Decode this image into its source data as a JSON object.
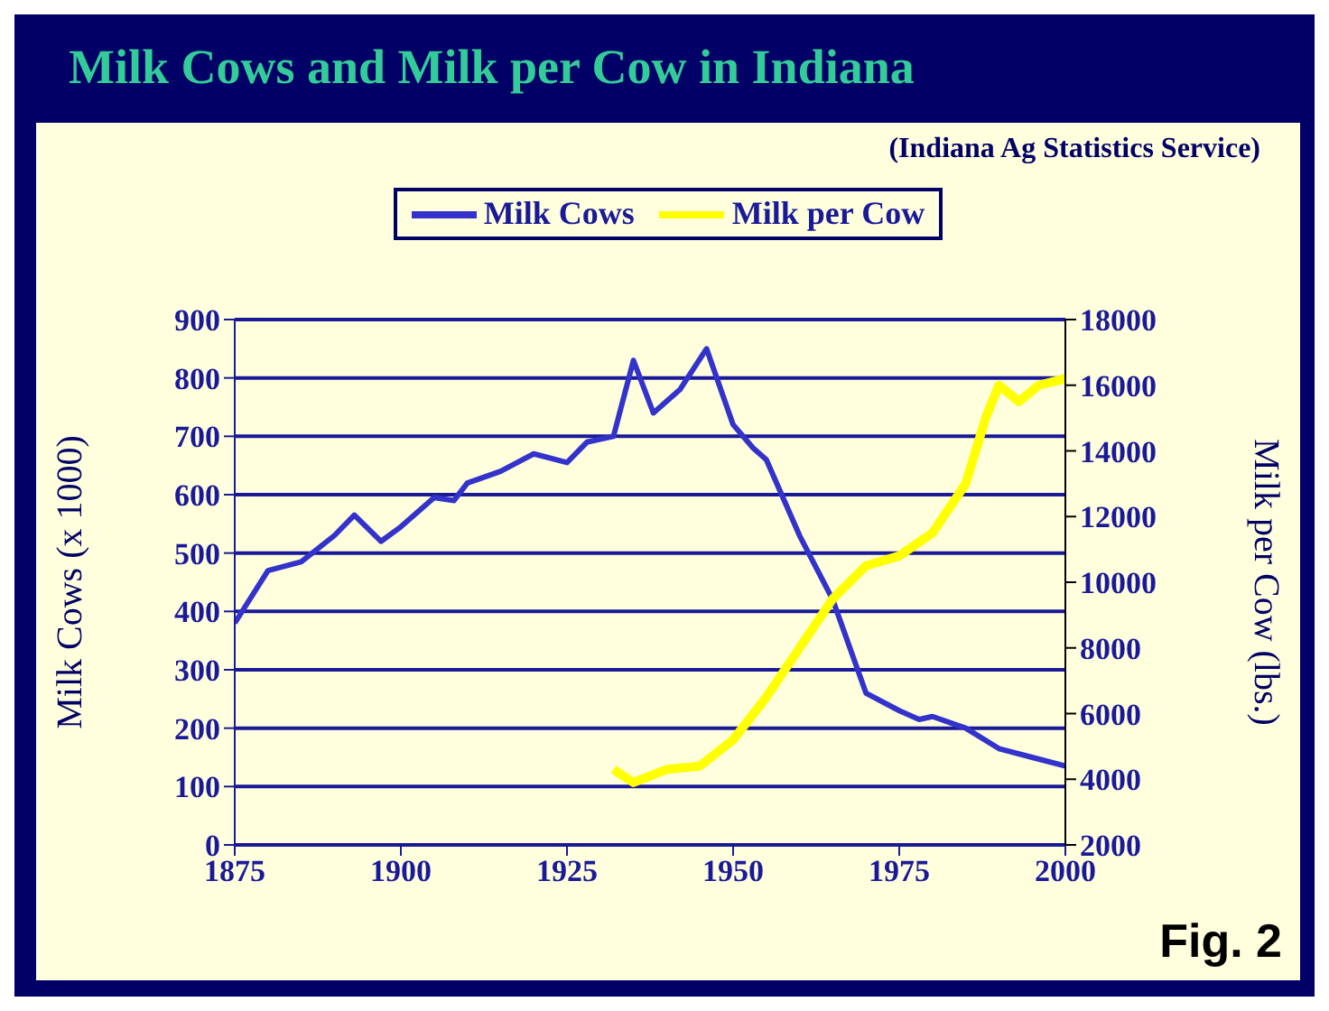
{
  "chart_data": {
    "type": "line",
    "title": "Milk Cows and Milk per Cow in Indiana",
    "subtitle": "(Indiana Ag Statistics Service)",
    "ylabel": "Milk Cows (x 1000)",
    "y2label": "Milk per Cow (lbs.)",
    "annotations": [
      "Fig. 2"
    ],
    "series": [
      {
        "name": "Milk Cows",
        "color": "#3333cc",
        "x": [
          1875,
          1880,
          1885,
          1890,
          1893,
          1897,
          1900,
          1905,
          1908,
          1910,
          1915,
          1920,
          1925,
          1928,
          1932,
          1935,
          1938,
          1942,
          1946,
          1950,
          1953,
          1955,
          1960,
          1965,
          1970,
          1975,
          1978,
          1980,
          1985,
          1990,
          1995,
          2000
        ],
        "values": [
          380,
          470,
          485,
          530,
          565,
          520,
          545,
          595,
          590,
          620,
          640,
          670,
          655,
          690,
          700,
          830,
          740,
          780,
          850,
          720,
          680,
          660,
          530,
          420,
          260,
          230,
          215,
          220,
          200,
          165,
          150,
          135
        ]
      },
      {
        "name": "Milk per Cow",
        "color": "#ffff00",
        "axis": "y2",
        "x": [
          1932,
          1935,
          1940,
          1945,
          1950,
          1955,
          1960,
          1965,
          1970,
          1975,
          1980,
          1985,
          1988,
          1990,
          1993,
          1996,
          2000
        ],
        "values": [
          4300,
          3900,
          4300,
          4400,
          5200,
          6500,
          8000,
          9500,
          10500,
          10800,
          11500,
          13000,
          15000,
          16000,
          15500,
          16000,
          16200
        ]
      }
    ],
    "xlim": [
      1875,
      2000
    ],
    "xticks": [
      1875,
      1900,
      1925,
      1950,
      1975,
      2000
    ],
    "ylim": [
      0,
      900
    ],
    "yticks": [
      0,
      100,
      200,
      300,
      400,
      500,
      600,
      700,
      800,
      900
    ],
    "y2lim": [
      2000,
      18000
    ],
    "y2ticks": [
      2000,
      4000,
      6000,
      8000,
      10000,
      12000,
      14000,
      16000,
      18000
    ],
    "grid": "y",
    "legend": "top",
    "line_style": "solid"
  }
}
